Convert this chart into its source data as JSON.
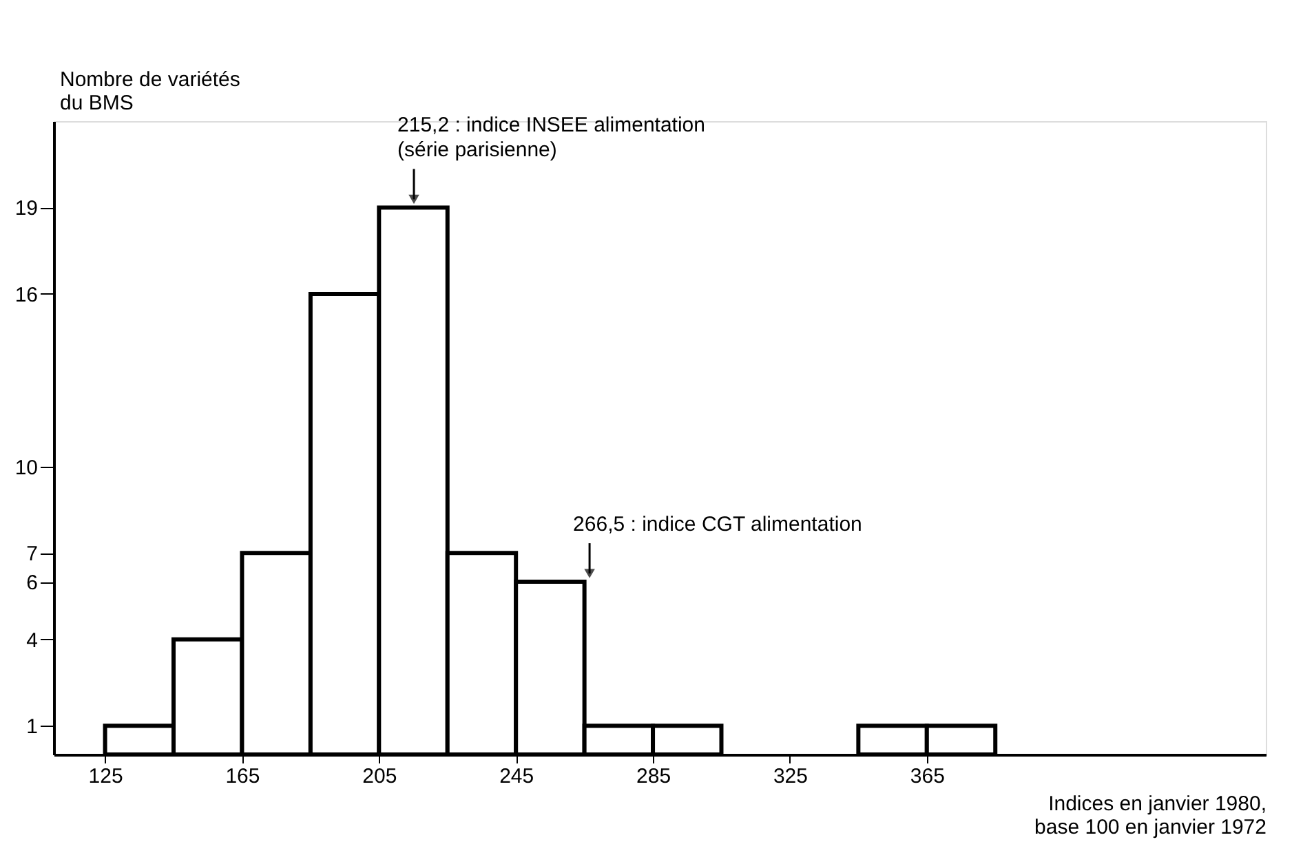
{
  "chart_data": {
    "type": "histogram",
    "xlabel": "Indices en janvier 1980,\nbase 100 en janvier 1972",
    "ylabel": "Nombre de variétés\ndu BMS",
    "bins": [
      125,
      145,
      165,
      185,
      205,
      225,
      245,
      265,
      285,
      305,
      325,
      345,
      365,
      385
    ],
    "values": [
      1,
      4,
      7,
      16,
      19,
      7,
      6,
      1,
      1,
      0,
      0,
      1,
      1
    ],
    "color": "#ffffff",
    "xlim": [
      110,
      464
    ],
    "ylim": [
      0,
      22
    ],
    "xticks": [
      125,
      165,
      205,
      245,
      285,
      325,
      365
    ],
    "yticks": [
      1,
      4,
      6,
      7,
      10,
      16,
      19
    ],
    "grid": false,
    "annotations": [
      {
        "text": "215,2 : indice INSEE alimentation\n(série parisienne)",
        "x": 215.2,
        "y": 19
      },
      {
        "text": "266,5 : indice CGT alimentation",
        "x": 266.5,
        "y": 6
      }
    ]
  }
}
